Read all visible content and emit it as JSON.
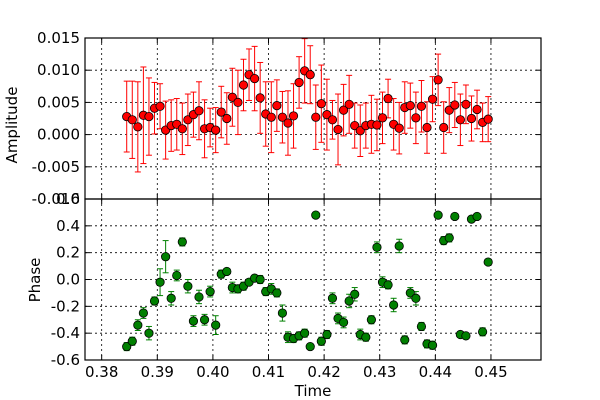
{
  "chart_data": [
    {
      "type": "scatter",
      "ylabel": "Amplitude",
      "ylim": [
        -0.01,
        0.015
      ],
      "xlim": [
        0.377,
        0.459
      ],
      "yticks": [
        "-0.010",
        "-0.005",
        "0.000",
        "0.005",
        "0.010",
        "0.015"
      ],
      "yticks_values": [
        -0.01,
        -0.005,
        0.0,
        0.005,
        0.01,
        0.015
      ],
      "grid": true,
      "marker_color": "#ff0000",
      "errorbar_color": "#ff0000",
      "series": [
        {
          "x": [
            0.3845,
            0.3855,
            0.3865,
            0.3875,
            0.3885,
            0.3895,
            0.3905,
            0.3915,
            0.3925,
            0.3935,
            0.3945,
            0.3955,
            0.3965,
            0.3975,
            0.3985,
            0.3995,
            0.4005,
            0.4015,
            0.4025,
            0.4035,
            0.4045,
            0.4055,
            0.4065,
            0.4075,
            0.4085,
            0.4095,
            0.4105,
            0.4115,
            0.4125,
            0.4135,
            0.4145,
            0.4155,
            0.4165,
            0.4175,
            0.4185,
            0.4195,
            0.4205,
            0.4215,
            0.4225,
            0.4235,
            0.4245,
            0.4255,
            0.4265,
            0.4275,
            0.4285,
            0.4295,
            0.4305,
            0.4315,
            0.4325,
            0.4335,
            0.4345,
            0.4355,
            0.4365,
            0.4375,
            0.4385,
            0.4395,
            0.4405,
            0.4415,
            0.4425,
            0.4435,
            0.4445,
            0.4455,
            0.4465,
            0.4475,
            0.4485,
            0.4495
          ],
          "y": [
            0.0028,
            0.0023,
            0.0012,
            0.003,
            0.0028,
            0.0041,
            0.0044,
            0.0007,
            0.0014,
            0.0016,
            0.0009,
            0.0023,
            0.0031,
            0.0037,
            0.0009,
            0.0011,
            0.0007,
            0.0035,
            0.0025,
            0.0058,
            0.005,
            0.0077,
            0.0093,
            0.0087,
            0.0057,
            0.0032,
            0.0027,
            0.0045,
            0.0027,
            0.0018,
            0.0029,
            0.0081,
            0.0099,
            0.0093,
            0.0027,
            0.0048,
            0.0031,
            0.0023,
            0.0008,
            0.0038,
            0.0047,
            0.0014,
            0.0006,
            0.0014,
            0.0016,
            0.0015,
            0.0026,
            0.0056,
            0.0016,
            0.001,
            0.0042,
            0.0045,
            0.0026,
            0.0044,
            0.0011,
            0.0055,
            0.0085,
            0.0011,
            0.0038,
            0.0046,
            0.0023,
            0.0047,
            0.0025,
            0.0039,
            0.0019,
            0.0024
          ],
          "yerr": [
            0.0055,
            0.006,
            0.007,
            0.0075,
            0.006,
            0.004,
            0.0035,
            0.0045,
            0.004,
            0.004,
            0.004,
            0.004,
            0.0035,
            0.0045,
            0.0045,
            0.003,
            0.0035,
            0.004,
            0.004,
            0.0045,
            0.005,
            0.004,
            0.004,
            0.005,
            0.0055,
            0.005,
            0.0055,
            0.004,
            0.004,
            0.005,
            0.005,
            0.004,
            0.005,
            0.0045,
            0.005,
            0.006,
            0.0055,
            0.003,
            0.0055,
            0.004,
            0.0045,
            0.0035,
            0.004,
            0.0035,
            0.0045,
            0.004,
            0.004,
            0.003,
            0.004,
            0.004,
            0.004,
            0.0035,
            0.004,
            0.004,
            0.004,
            0.0035,
            0.004,
            0.004,
            0.0035,
            0.0035,
            0.004,
            0.003,
            0.0035,
            0.003,
            0.003,
            0.0035
          ]
        }
      ]
    },
    {
      "type": "scatter",
      "xlabel": "Time",
      "ylabel": "Phase",
      "ylim": [
        -0.6,
        0.6
      ],
      "xlim": [
        0.377,
        0.459
      ],
      "xticks": [
        "0.38",
        "0.39",
        "0.40",
        "0.41",
        "0.42",
        "0.43",
        "0.44",
        "0.45"
      ],
      "xticks_values": [
        0.38,
        0.39,
        0.4,
        0.41,
        0.42,
        0.43,
        0.44,
        0.45
      ],
      "yticks": [
        "-0.6",
        "-0.4",
        "-0.2",
        "0.0",
        "0.2",
        "0.4",
        "0.6"
      ],
      "yticks_values": [
        -0.6,
        -0.4,
        -0.2,
        0.0,
        0.2,
        0.4,
        0.6
      ],
      "grid": true,
      "marker_color": "#008000",
      "errorbar_color": "#008000",
      "series": [
        {
          "x": [
            0.3845,
            0.3855,
            0.3865,
            0.3875,
            0.3885,
            0.3895,
            0.3905,
            0.3915,
            0.3925,
            0.3935,
            0.3945,
            0.3955,
            0.3965,
            0.3975,
            0.3985,
            0.3995,
            0.4005,
            0.4015,
            0.4025,
            0.4035,
            0.4045,
            0.4055,
            0.4065,
            0.4075,
            0.4085,
            0.4095,
            0.4105,
            0.4115,
            0.4125,
            0.4135,
            0.4145,
            0.4155,
            0.4165,
            0.4175,
            0.4185,
            0.4195,
            0.4205,
            0.4215,
            0.4225,
            0.4235,
            0.4245,
            0.4255,
            0.4265,
            0.4275,
            0.4285,
            0.4295,
            0.4305,
            0.4315,
            0.4325,
            0.4335,
            0.4345,
            0.4355,
            0.4365,
            0.4375,
            0.4385,
            0.4395,
            0.4405,
            0.4415,
            0.4425,
            0.4435,
            0.4445,
            0.4455,
            0.4465,
            0.4475,
            0.4485,
            0.4495
          ],
          "y": [
            -0.5,
            -0.46,
            -0.34,
            -0.25,
            -0.4,
            -0.16,
            -0.02,
            0.17,
            -0.14,
            0.03,
            0.28,
            -0.05,
            -0.31,
            -0.13,
            -0.3,
            -0.09,
            -0.34,
            0.04,
            0.06,
            -0.06,
            -0.07,
            -0.05,
            -0.02,
            0.01,
            0.0,
            -0.09,
            -0.07,
            -0.1,
            -0.25,
            -0.43,
            -0.44,
            -0.42,
            -0.4,
            -0.5,
            0.48,
            -0.46,
            -0.41,
            -0.14,
            -0.29,
            -0.32,
            -0.16,
            -0.11,
            -0.41,
            -0.43,
            -0.3,
            0.24,
            -0.02,
            -0.04,
            -0.19,
            0.25,
            -0.45,
            -0.1,
            -0.14,
            -0.35,
            -0.48,
            -0.49,
            0.48,
            0.29,
            0.31,
            0.47,
            -0.41,
            -0.42,
            0.45,
            0.47,
            -0.39,
            0.13
          ],
          "yerr": [
            0.03,
            0.03,
            0.04,
            0.04,
            0.05,
            0.03,
            0.1,
            0.12,
            0.05,
            0.04,
            0.03,
            0.05,
            0.04,
            0.05,
            0.04,
            0.04,
            0.07,
            0.03,
            0.02,
            0.04,
            0.03,
            0.03,
            0.02,
            0.02,
            0.03,
            0.03,
            0.04,
            0.03,
            0.06,
            0.04,
            0.03,
            0.03,
            0.03,
            0.02,
            0.02,
            0.03,
            0.03,
            0.04,
            0.04,
            0.04,
            0.05,
            0.05,
            0.04,
            0.03,
            0.03,
            0.04,
            0.04,
            0.03,
            0.05,
            0.05,
            0.03,
            0.04,
            0.05,
            0.03,
            0.03,
            0.03,
            0.02,
            0.03,
            0.03,
            0.02,
            0.02,
            0.02,
            0.02,
            0.02,
            0.03,
            0.02
          ]
        }
      ]
    }
  ]
}
